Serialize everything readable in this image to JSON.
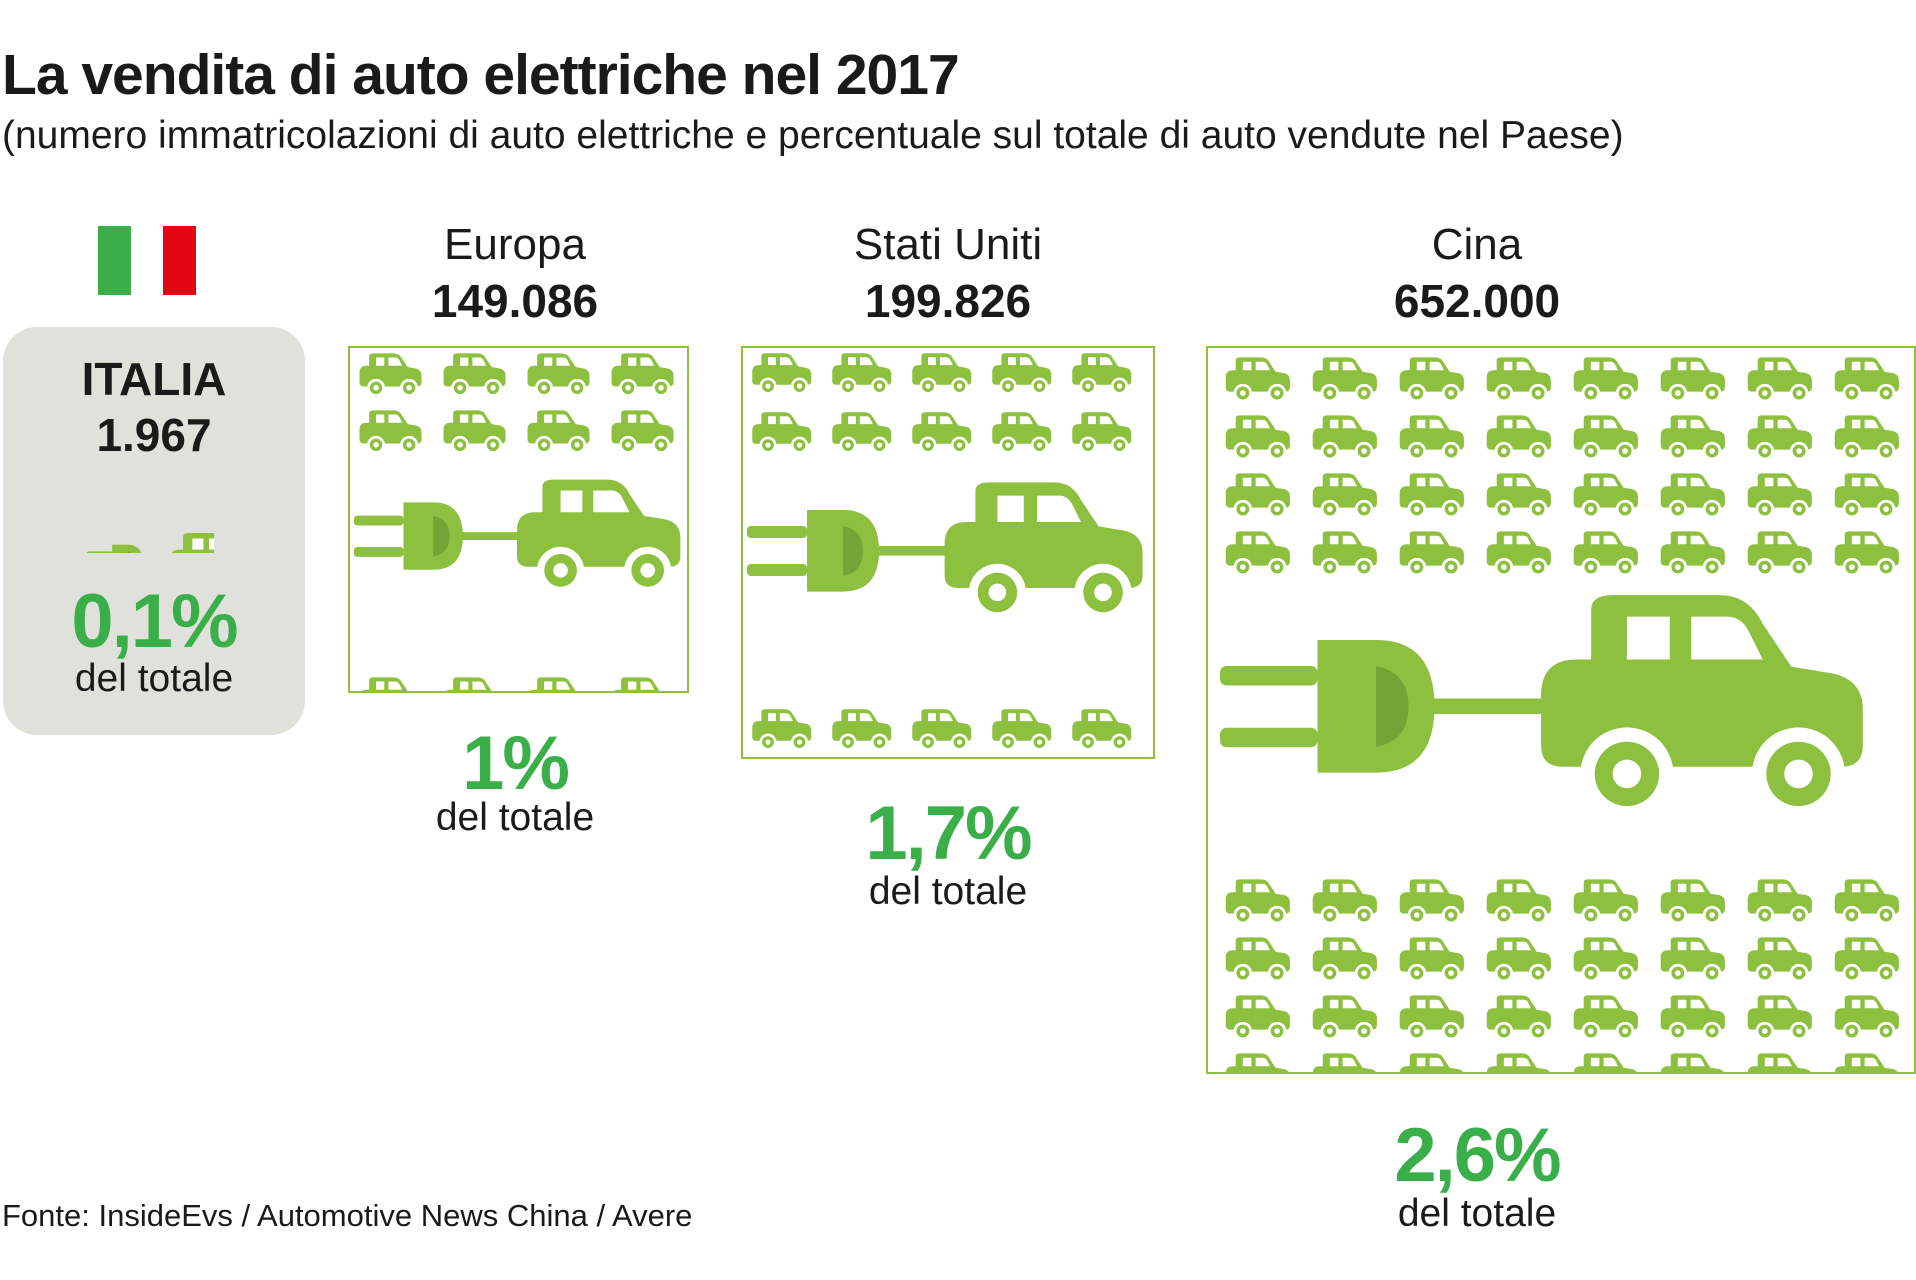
{
  "title": "La vendita di auto elettriche nel 2017",
  "subtitle": "(numero immatricolazioni di auto elettriche e percentuale sul totale di auto vendute nel Paese)",
  "source": "Fonte: InsideEvs / Automotive News China / Avere",
  "colors": {
    "car_green": "#8dc03e",
    "plug_dark": "#72a535",
    "percent_green": "#3aae49",
    "italia_box": "#e1e1dc",
    "flag_green": "#3bae49",
    "flag_red": "#e30613"
  },
  "icons": [
    "italy-flag-icon",
    "plug-car-icon",
    "car-icon"
  ],
  "chart_data": {
    "type": "pictogram",
    "title": "La vendita di auto elettriche nel 2017",
    "subtitle": "(numero immatricolazioni di auto elettriche e percentuale sul totale di auto vendute nel Paese)",
    "categories": [
      "ITALIA",
      "Europa",
      "Stati Uniti",
      "Cina"
    ],
    "series": [
      {
        "values": [
          "1.967",
          "149.086",
          "199.826",
          "652.000"
        ]
      },
      {
        "values": [
          "0,1%",
          "1%",
          "1,7%",
          "2,6%"
        ]
      }
    ],
    "of_total_label": "del totale",
    "source": "Fonte: InsideEvs / Automotive News China / Avere"
  }
}
